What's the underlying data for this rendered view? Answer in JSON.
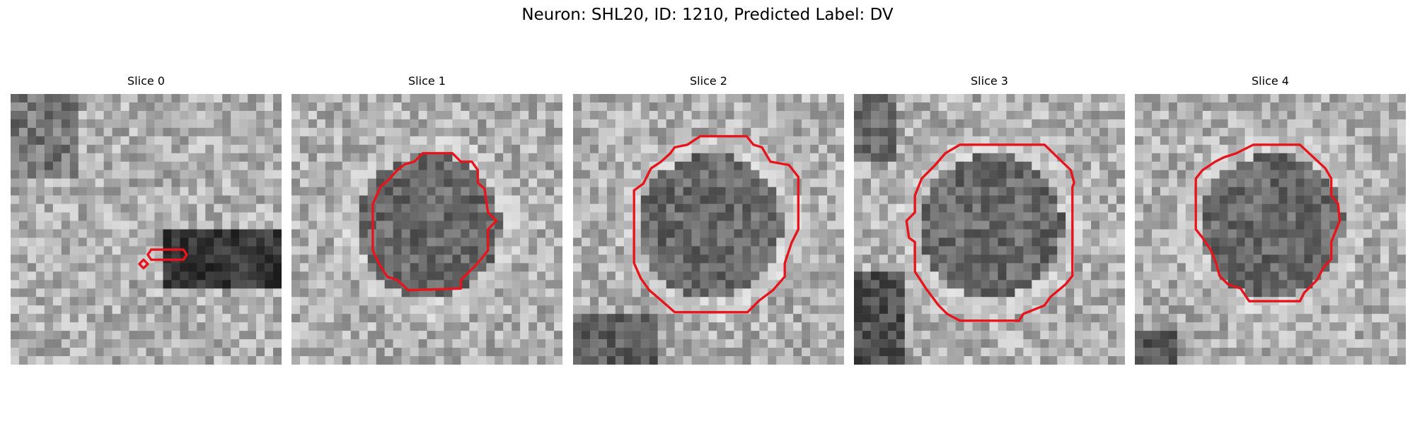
{
  "figure": {
    "title": "Neuron: SHL20, ID: 1210, Predicted Label: DV",
    "contour_color": "#e8141c"
  },
  "panels": [
    {
      "title": "Slice 0",
      "seed": 11,
      "pattern": "blob-right"
    },
    {
      "title": "Slice 1",
      "seed": 23,
      "pattern": "round-center"
    },
    {
      "title": "Slice 2",
      "seed": 37,
      "pattern": "round-center"
    },
    {
      "title": "Slice 3",
      "seed": 41,
      "pattern": "round-center"
    },
    {
      "title": "Slice 4",
      "seed": 53,
      "pattern": "round-center"
    }
  ]
}
